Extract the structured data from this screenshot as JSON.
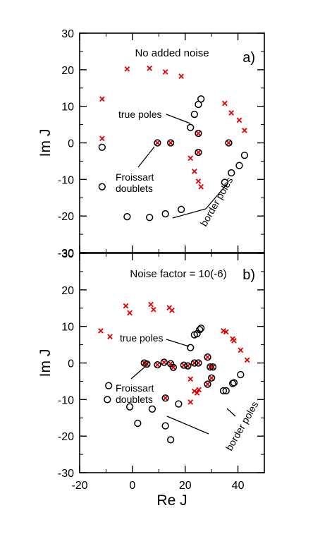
{
  "axes": {
    "xlabel": "Re J",
    "ylabel": "Im J",
    "xlim": [
      -20,
      50
    ],
    "ylim": [
      -30,
      30
    ],
    "xticks": [
      -20,
      0,
      20,
      40
    ],
    "yticks": [
      -30,
      -20,
      -10,
      0,
      10,
      20,
      30
    ]
  },
  "colors": {
    "cross": "#e60000",
    "circle": "#000000",
    "axes": "#000000"
  },
  "chart_data": [
    {
      "type": "scatter",
      "panel_label": "a)",
      "title": "No added noise",
      "annotations": {
        "true_poles": "true poles",
        "froissart_1": "Froissart",
        "froissart_2": "doublets",
        "border_poles": "border poles"
      },
      "series": [
        {
          "marker": "x",
          "points": [
            [
              -11.5,
              12
            ],
            [
              -11.5,
              1.2
            ],
            [
              -2,
              20.2
            ],
            [
              6.5,
              20.4
            ],
            [
              12.5,
              19.4
            ],
            [
              18.5,
              18.2
            ],
            [
              22,
              -4.2
            ],
            [
              23.5,
              -7.8
            ],
            [
              25,
              -10.5
            ],
            [
              26,
              -12
            ],
            [
              35,
              10.8
            ],
            [
              37.5,
              8.2
            ],
            [
              40.5,
              6.2
            ],
            [
              42.5,
              3.4
            ],
            [
              9.5,
              0
            ],
            [
              14.5,
              0
            ],
            [
              25,
              2.6
            ],
            [
              25,
              -2.6
            ],
            [
              36.5,
              0
            ]
          ]
        },
        {
          "marker": "o",
          "points": [
            [
              -11.5,
              -1.2
            ],
            [
              -11.5,
              -12
            ],
            [
              -2,
              -20.2
            ],
            [
              6.5,
              -20.4
            ],
            [
              12.5,
              -19.4
            ],
            [
              18.5,
              -18.2
            ],
            [
              22,
              4.2
            ],
            [
              23.5,
              7.8
            ],
            [
              25,
              10.5
            ],
            [
              26,
              12
            ],
            [
              35,
              -10.8
            ],
            [
              37.5,
              -8.2
            ],
            [
              40.5,
              -6.2
            ],
            [
              42.5,
              -3.4
            ],
            [
              9.5,
              0
            ],
            [
              14.5,
              0
            ],
            [
              25,
              2.6
            ],
            [
              25,
              -2.6
            ],
            [
              36.5,
              0
            ]
          ]
        }
      ]
    },
    {
      "type": "scatter",
      "panel_label": "b)",
      "title": "Noise factor = 10(-6)",
      "annotations": {
        "true_poles": "true poles",
        "froissart_1": "Froissart",
        "froissart_2": "doublets",
        "border_poles": "border poles"
      },
      "series": [
        {
          "marker": "x",
          "points": [
            [
              -12,
              8.8
            ],
            [
              -8.5,
              7.2
            ],
            [
              -2.5,
              15.6
            ],
            [
              -1,
              13.7
            ],
            [
              7,
              16
            ],
            [
              8,
              14.6
            ],
            [
              14,
              15.1
            ],
            [
              15,
              14.4
            ],
            [
              22,
              -4.4
            ],
            [
              22,
              -10.7
            ],
            [
              23.5,
              -7.7
            ],
            [
              24.5,
              -8.2
            ],
            [
              25.2,
              -7.3
            ],
            [
              34.5,
              8.8
            ],
            [
              35.5,
              8.5
            ],
            [
              38,
              6.6
            ],
            [
              38.5,
              6.1
            ],
            [
              41,
              3.5
            ],
            [
              43.5,
              0.8
            ],
            [
              4.5,
              0
            ],
            [
              5.5,
              -0.3
            ],
            [
              9.5,
              -0.5
            ],
            [
              12,
              0.2
            ],
            [
              14.5,
              -0.2
            ],
            [
              15.5,
              -1.2
            ],
            [
              19.5,
              -0.6
            ],
            [
              21,
              -0.8
            ],
            [
              23.5,
              0
            ],
            [
              25,
              0
            ],
            [
              28.5,
              1.6
            ],
            [
              29.5,
              -1.1
            ],
            [
              30.5,
              -1.1
            ],
            [
              30,
              -4.1
            ],
            [
              28.5,
              -5.8
            ],
            [
              12.5,
              -9.6
            ]
          ]
        },
        {
          "marker": "o",
          "points": [
            [
              -9,
              -6.2
            ],
            [
              -9.5,
              -10
            ],
            [
              -1,
              -12
            ],
            [
              2,
              -16.5
            ],
            [
              7.5,
              -12.6
            ],
            [
              12.5,
              -17.2
            ],
            [
              14.5,
              -21
            ],
            [
              17.5,
              -11.2
            ],
            [
              22,
              4.2
            ],
            [
              23.5,
              7.7
            ],
            [
              24.5,
              8
            ],
            [
              25.5,
              9.1
            ],
            [
              26,
              9.5
            ],
            [
              34.5,
              -7.6
            ],
            [
              35.5,
              -7.6
            ],
            [
              38,
              -5.6
            ],
            [
              38.5,
              -5.4
            ],
            [
              41,
              -3.2
            ],
            [
              4.5,
              0
            ],
            [
              5.5,
              -0.3
            ],
            [
              9.5,
              -0.5
            ],
            [
              12,
              0.2
            ],
            [
              14.5,
              -0.2
            ],
            [
              15.5,
              -1.2
            ],
            [
              19.5,
              -0.6
            ],
            [
              21,
              -0.8
            ],
            [
              23.5,
              0
            ],
            [
              25,
              0
            ],
            [
              28.5,
              1.6
            ],
            [
              29.5,
              -1.1
            ],
            [
              30.5,
              -1.1
            ],
            [
              30,
              -4.1
            ],
            [
              28.5,
              -5.8
            ],
            [
              12.5,
              -9.6
            ]
          ]
        }
      ]
    }
  ]
}
